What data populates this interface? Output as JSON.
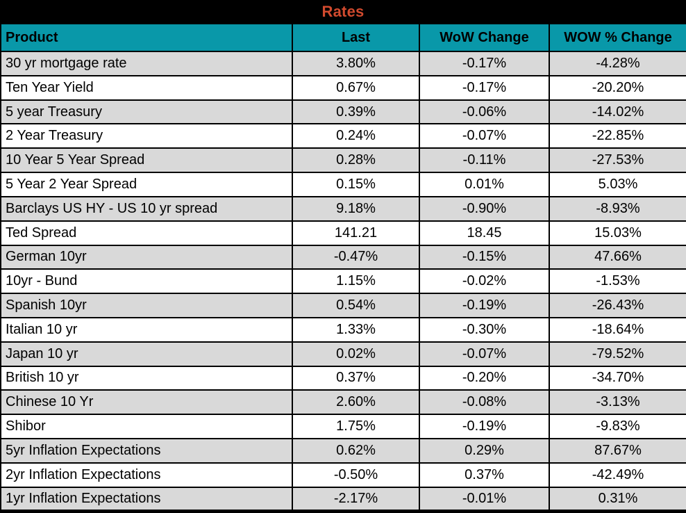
{
  "title": "Rates",
  "colors": {
    "title_bar_bg": "#000000",
    "title_text": "#D14A2E",
    "header_bg": "#0998A9",
    "header_text": "#000000",
    "stripe_row_bg": "#D9D9D9",
    "plain_row_bg": "#FFFFFF",
    "grid_border": "#000000"
  },
  "chart_data": {
    "type": "table",
    "title": "Rates",
    "columns": [
      "Product",
      "Last",
      "WoW Change",
      "WOW % Change"
    ],
    "rows": [
      {
        "product": "30 yr mortgage rate",
        "last": "3.80%",
        "wow_change": "-0.17%",
        "wow_pct_change": "-4.28%"
      },
      {
        "product": "Ten Year Yield",
        "last": "0.67%",
        "wow_change": "-0.17%",
        "wow_pct_change": "-20.20%"
      },
      {
        "product": "5 year Treasury",
        "last": "0.39%",
        "wow_change": "-0.06%",
        "wow_pct_change": "-14.02%"
      },
      {
        "product": "2 Year Treasury",
        "last": "0.24%",
        "wow_change": "-0.07%",
        "wow_pct_change": "-22.85%"
      },
      {
        "product": "10 Year 5 Year Spread",
        "last": "0.28%",
        "wow_change": "-0.11%",
        "wow_pct_change": "-27.53%"
      },
      {
        "product": "5 Year 2 Year Spread",
        "last": "0.15%",
        "wow_change": "0.01%",
        "wow_pct_change": "5.03%"
      },
      {
        "product": "Barclays US HY - US 10 yr spread",
        "last": "9.18%",
        "wow_change": "-0.90%",
        "wow_pct_change": "-8.93%"
      },
      {
        "product": "Ted Spread",
        "last": "141.21",
        "wow_change": "18.45",
        "wow_pct_change": "15.03%"
      },
      {
        "product": "German 10yr",
        "last": "-0.47%",
        "wow_change": "-0.15%",
        "wow_pct_change": "47.66%"
      },
      {
        "product": "10yr - Bund",
        "last": "1.15%",
        "wow_change": "-0.02%",
        "wow_pct_change": "-1.53%"
      },
      {
        "product": "Spanish 10yr",
        "last": "0.54%",
        "wow_change": "-0.19%",
        "wow_pct_change": "-26.43%"
      },
      {
        "product": "Italian 10 yr",
        "last": "1.33%",
        "wow_change": "-0.30%",
        "wow_pct_change": "-18.64%"
      },
      {
        "product": "Japan 10 yr",
        "last": "0.02%",
        "wow_change": "-0.07%",
        "wow_pct_change": "-79.52%"
      },
      {
        "product": "British 10 yr",
        "last": "0.37%",
        "wow_change": "-0.20%",
        "wow_pct_change": "-34.70%"
      },
      {
        "product": "Chinese 10 Yr",
        "last": "2.60%",
        "wow_change": "-0.08%",
        "wow_pct_change": "-3.13%"
      },
      {
        "product": "Shibor",
        "last": "1.75%",
        "wow_change": "-0.19%",
        "wow_pct_change": "-9.83%"
      },
      {
        "product": "5yr Inflation Expectations",
        "last": "0.62%",
        "wow_change": "0.29%",
        "wow_pct_change": "87.67%"
      },
      {
        "product": "2yr Inflation Expectations",
        "last": "-0.50%",
        "wow_change": "0.37%",
        "wow_pct_change": "-42.49%"
      },
      {
        "product": "1yr Inflation Expectations",
        "last": "-2.17%",
        "wow_change": "-0.01%",
        "wow_pct_change": "0.31%"
      }
    ]
  }
}
